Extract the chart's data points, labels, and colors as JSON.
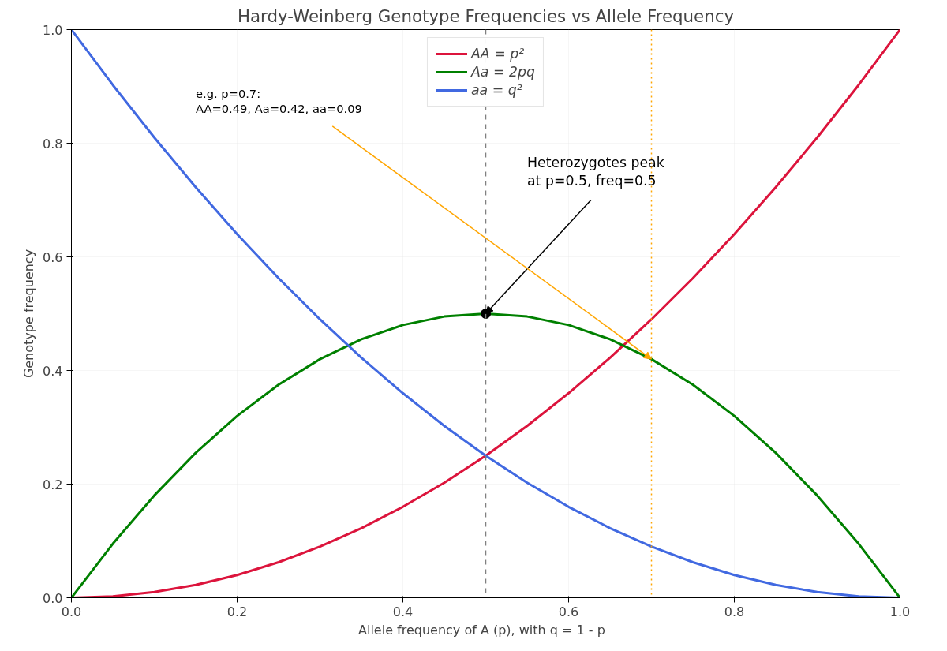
{
  "chart_data": {
    "type": "line",
    "title": "Hardy-Weinberg Genotype Frequencies vs Allele Frequency",
    "xlabel": "Allele frequency of A  (p),  with q = 1 - p",
    "ylabel": "Genotype frequency",
    "x": [
      0,
      0.05,
      0.1,
      0.15,
      0.2,
      0.25,
      0.3,
      0.35,
      0.4,
      0.45,
      0.5,
      0.55,
      0.6,
      0.65,
      0.7,
      0.75,
      0.8,
      0.85,
      0.9,
      0.95,
      1
    ],
    "series": [
      {
        "name": "AA = p²",
        "color": "#dc143c",
        "values": [
          0,
          0.0025,
          0.01,
          0.0225,
          0.04,
          0.0625,
          0.09,
          0.1225,
          0.16,
          0.2025,
          0.25,
          0.3025,
          0.36,
          0.4225,
          0.49,
          0.5625,
          0.64,
          0.7225,
          0.81,
          0.9025,
          1
        ]
      },
      {
        "name": "Aa = 2pq",
        "color": "#008000",
        "values": [
          0,
          0.095,
          0.18,
          0.255,
          0.32,
          0.375,
          0.42,
          0.455,
          0.48,
          0.495,
          0.5,
          0.495,
          0.48,
          0.455,
          0.42,
          0.375,
          0.32,
          0.255,
          0.18,
          0.095,
          0
        ]
      },
      {
        "name": "aa = q²",
        "color": "#4169e1",
        "values": [
          1,
          0.9025,
          0.81,
          0.7225,
          0.64,
          0.5625,
          0.49,
          0.4225,
          0.36,
          0.3025,
          0.25,
          0.2025,
          0.16,
          0.1225,
          0.09,
          0.0625,
          0.04,
          0.0225,
          0.01,
          0.0025,
          0
        ]
      },
      {
        "type": "scatter",
        "color": "#000000",
        "x": [
          0.5
        ],
        "values": [
          0.5
        ],
        "marker": "circle"
      }
    ],
    "ref_lines": [
      {
        "axis": "x",
        "value": 0.5,
        "color": "#808080",
        "line_style": "dashed"
      },
      {
        "axis": "x",
        "value": 0.7,
        "color": "#ffa500",
        "line_style": "dotted"
      }
    ],
    "annotations": [
      {
        "text": "Heterozygotes peak\nat p=0.5, freq=0.5",
        "x": 0.5,
        "y": 0.5
      },
      {
        "text": "e.g. p=0.7:\nAA=0.49, Aa=0.42, aa=0.09",
        "x": 0.7,
        "y": 0.42
      }
    ],
    "xlim": [
      0,
      1
    ],
    "ylim": [
      0,
      1
    ],
    "xticks": [
      {
        "value": 0,
        "label": "0.0"
      },
      0.2,
      0.4,
      0.6,
      0.8,
      {
        "value": 1,
        "label": "1.0"
      }
    ],
    "yticks": [
      {
        "value": 0,
        "label": "0.0"
      },
      0.2,
      0.4,
      0.6,
      0.8,
      {
        "value": 1,
        "label": "1.0"
      }
    ],
    "grid": true,
    "legend": "top",
    "marker": "none",
    "line_style": "solid"
  }
}
